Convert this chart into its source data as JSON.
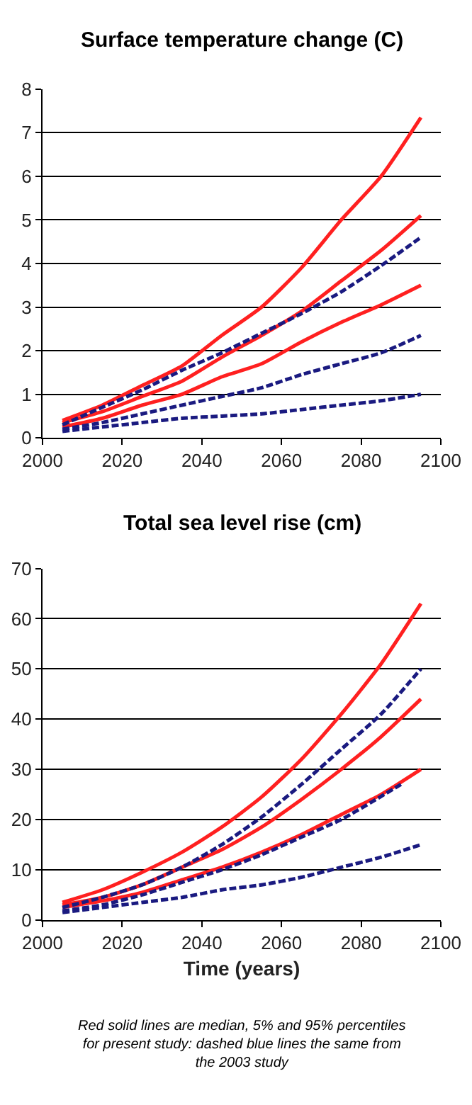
{
  "chart_data": [
    {
      "type": "line",
      "title": "Surface temperature change (C)",
      "x": [
        2005,
        2015,
        2025,
        2035,
        2045,
        2055,
        2065,
        2075,
        2085,
        2095
      ],
      "xlim": [
        2000,
        2100
      ],
      "xticks": [
        2000,
        2020,
        2040,
        2060,
        2080,
        2100
      ],
      "ylim": [
        0,
        8
      ],
      "yticks": [
        0,
        1,
        2,
        3,
        4,
        5,
        6,
        7,
        8
      ],
      "grid": "y",
      "series": [
        {
          "color": "#ff2020",
          "line_style": "solid",
          "values": [
            0.4,
            0.75,
            1.2,
            1.65,
            2.35,
            3.0,
            3.9,
            5.0,
            6.0,
            7.35
          ]
        },
        {
          "color": "#ff2020",
          "line_style": "solid",
          "values": [
            0.35,
            0.6,
            0.95,
            1.3,
            1.85,
            2.35,
            2.9,
            3.6,
            4.3,
            5.1
          ]
        },
        {
          "color": "#ff2020",
          "line_style": "solid",
          "values": [
            0.25,
            0.45,
            0.75,
            1.0,
            1.4,
            1.7,
            2.2,
            2.65,
            3.05,
            3.5
          ]
        },
        {
          "color": "#1a1a80",
          "line_style": "dashed",
          "values": [
            0.3,
            0.7,
            1.1,
            1.55,
            1.95,
            2.4,
            2.85,
            3.35,
            3.95,
            4.6
          ]
        },
        {
          "color": "#1a1a80",
          "line_style": "dashed",
          "values": [
            0.2,
            0.35,
            0.55,
            0.75,
            0.95,
            1.15,
            1.45,
            1.7,
            1.95,
            2.35
          ]
        },
        {
          "color": "#1a1a80",
          "line_style": "dashed",
          "values": [
            0.15,
            0.25,
            0.35,
            0.45,
            0.5,
            0.55,
            0.65,
            0.75,
            0.85,
            1.0
          ]
        }
      ]
    },
    {
      "type": "line",
      "title": "Total sea level rise (cm)",
      "xlabel": "Time (years)",
      "x": [
        2005,
        2015,
        2025,
        2035,
        2045,
        2055,
        2065,
        2075,
        2085,
        2095
      ],
      "xlim": [
        2000,
        2100
      ],
      "xticks": [
        2000,
        2020,
        2040,
        2060,
        2080,
        2100
      ],
      "ylim": [
        0,
        70
      ],
      "yticks": [
        0,
        10,
        20,
        30,
        40,
        50,
        60,
        70
      ],
      "grid": "y",
      "annotations": [
        "Red solid lines are median, 5% and 95% percentiles for present study: dashed blue lines the same from the 2003 study"
      ],
      "series": [
        {
          "color": "#ff2020",
          "line_style": "solid",
          "values": [
            3.5,
            6,
            9.5,
            13.5,
            18.5,
            24.5,
            32,
            41,
            51,
            63
          ]
        },
        {
          "color": "#ff2020",
          "line_style": "solid",
          "values": [
            3,
            4.5,
            7,
            10.5,
            14,
            18.5,
            24,
            30,
            36.5,
            44
          ]
        },
        {
          "color": "#ff2020",
          "line_style": "solid",
          "values": [
            2.5,
            3.8,
            5.5,
            8,
            10.5,
            13.5,
            17,
            21,
            25,
            30
          ]
        },
        {
          "color": "#1a1a80",
          "line_style": "dashed",
          "values": [
            2.5,
            4.5,
            7,
            10.5,
            15,
            20.5,
            27,
            34,
            41,
            50
          ]
        },
        {
          "color": "#1a1a80",
          "line_style": "dashed",
          "x": [
            2005,
            2015,
            2025,
            2035,
            2045,
            2055,
            2065,
            2075,
            2090
          ],
          "values": [
            1.8,
            3,
            5,
            7.5,
            10,
            13,
            16.5,
            20,
            27
          ]
        },
        {
          "color": "#1a1a80",
          "line_style": "dashed",
          "values": [
            1.5,
            2.5,
            3.5,
            4.5,
            6,
            7,
            8.5,
            10.5,
            12.5,
            15
          ]
        }
      ]
    }
  ]
}
